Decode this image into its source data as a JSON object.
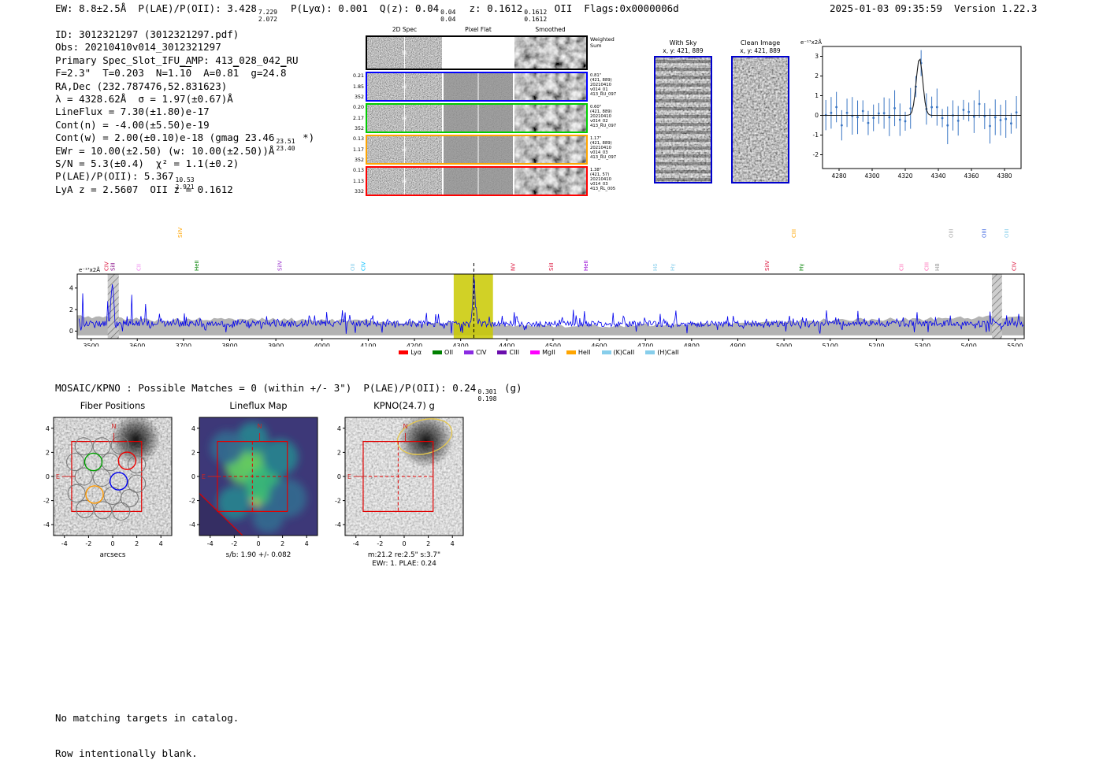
{
  "header": {
    "stats": [
      {
        "t": "EW: 8.8±2.5Å  P(LAE)/P(OII): 3.428"
      },
      {
        "up": "7.229",
        "dn": "2.072"
      },
      {
        "t": "  P(Lyα): 0.001  Q(z): 0.04"
      },
      {
        "up": "0.04",
        "dn": "0.04"
      },
      {
        "t": "  z: 0.1612"
      },
      {
        "up": "0.1612",
        "dn": "0.1612"
      },
      {
        "t": " OII  Flags:0x0000006d"
      }
    ],
    "timestamp_version": "2025-01-03 09:35:59  Version 1.22.3"
  },
  "info_lines": [
    [
      {
        "t": "ID: 3012321297 (3012321297.pdf)"
      }
    ],
    [
      {
        "t": "Obs: 20210410v014_3012321297"
      }
    ],
    [
      {
        "t": "Primary Spec_Slot_IFU_AMP: 413_028_042_RU"
      }
    ],
    [
      {
        "t": "F=2.3\"  T=0.203  N=1."
      },
      {
        "t": "10",
        "bar": true
      },
      {
        "t": "  A=0.8"
      },
      {
        "t": "1",
        "bar": true
      },
      {
        "t": "  g=24."
      },
      {
        "t": "8",
        "bar": true
      }
    ],
    [
      {
        "t": "RA,Dec (232.787476,52.831623)"
      }
    ],
    [
      {
        "t": "λ = 4328.62Å  σ = 1.97(±0.67)Å"
      }
    ],
    [
      {
        "t": "LineFlux = 7.30(±1.80)e-17"
      }
    ],
    [
      {
        "t": "Cont(n) = -4.00(±5.50)e-19"
      }
    ],
    [
      {
        "t": "Cont(w) = 2.00(±0.10)e-18 (gmag 23.46"
      },
      {
        "up": "23.51",
        "dn": "23.40"
      },
      {
        "t": " *)"
      }
    ],
    [
      {
        "t": "EWr = 10.00(±2.50) (w: 10.00(±2.50))Å"
      }
    ],
    [
      {
        "t": "S/N = 5.3(±0.4)  χ² = 1.1(±0.2)"
      }
    ],
    [
      {
        "t": "P(LAE)/P(OII): 5.367"
      },
      {
        "up": "10.53",
        "dn": "2.921"
      }
    ],
    [
      {
        "t": "LyA z = 2.5607  OII z = 0.1612"
      }
    ]
  ],
  "grid2d": {
    "col_headers": [
      "2D Spec",
      "Pixel Flat",
      "Smoothed"
    ],
    "rows": [
      {
        "color": "#000000",
        "left": [],
        "right": [
          "Weighted",
          "Sum"
        ]
      },
      {
        "color": "#0000ff",
        "left": [
          "0.21",
          "1.85",
          "352"
        ],
        "right": [
          "0.81\"",
          "(421, 889)",
          "20210410",
          "v014_01",
          "413_RU_097"
        ]
      },
      {
        "color": "#00cc00",
        "left": [
          "0.20",
          "2.17",
          "352"
        ],
        "right": [
          "0.60\"",
          "(421, 889)",
          "20210410",
          "v014_02",
          "413_RU_097"
        ]
      },
      {
        "color": "#ffa500",
        "left": [
          "0.13",
          "1.17",
          "352"
        ],
        "right": [
          "1.17\"",
          "(421, 889)",
          "20210410",
          "v014_03",
          "413_RU_097"
        ]
      },
      {
        "color": "#ff0000",
        "left": [
          "0.13",
          "1.13",
          "332"
        ],
        "right": [
          "1.38\"",
          "(421, 57)",
          "20210410",
          "v014_03",
          "413_RL_005"
        ]
      }
    ]
  },
  "withsky": {
    "title": "With Sky",
    "subtitle": "x, y: 421, 889"
  },
  "clean": {
    "title": "Clean Image",
    "subtitle": "x, y: 421, 889"
  },
  "mosaic": {
    "heading": [
      {
        "t": "MOSAIC/KPNO : Possible Matches = 0 (within +/- 3\")  P(LAE)/P(OII): 0.24"
      },
      {
        "up": "0.301",
        "dn": "0.198"
      },
      {
        "t": " (g)"
      }
    ]
  },
  "footer_lines": [
    "No matching targets in catalog.",
    "Row intentionally blank."
  ],
  "chart_data": [
    {
      "id": "zoom_spectrum",
      "type": "scatter",
      "ylabel": "e⁻¹⁷x2Å",
      "x_range": [
        4270,
        4390
      ],
      "y_range": [
        -2.7,
        3.5
      ],
      "xticks": [
        4280,
        4300,
        4320,
        4340,
        4360,
        4380
      ],
      "yticks": [
        -2,
        -1,
        0,
        1,
        2,
        3
      ],
      "fit": {
        "mu": 4328.62,
        "sigma": 1.97,
        "amp": 2.9
      },
      "points": {
        "seed": 11,
        "x_start": 4272,
        "x_step": 3.2,
        "n": 37,
        "noise": 0.75,
        "err_min": 0.45,
        "err_rand": 0.6
      },
      "colors": {
        "points": "#3a76c4",
        "fit": "#1a1a1a"
      }
    },
    {
      "id": "full_spectrum",
      "type": "line",
      "ylabel": "e⁻¹⁷x2Å",
      "x_range": [
        3470,
        5520
      ],
      "y_range": [
        -0.7,
        5.3
      ],
      "xticks": [
        3500,
        3600,
        3700,
        3800,
        3900,
        4000,
        4100,
        4200,
        4300,
        4400,
        4500,
        4600,
        4700,
        4800,
        4900,
        5000,
        5100,
        5200,
        5300,
        5400,
        5500
      ],
      "yticks": [
        0,
        2,
        4
      ],
      "line_color": "#0000ee",
      "emission": {
        "mu": 4328.62,
        "amp": 4.6,
        "sigma": 2.4
      },
      "noise": {
        "seed": 23,
        "base": 0.55,
        "step": 2,
        "spike_blue": 3.6,
        "spike_norm": 1.5,
        "blue_cut": 3650,
        "extra_spike": {
          "mu": 3546,
          "amp": 3.8,
          "sigma": 3
        }
      },
      "err_band": {
        "seed": 5,
        "base": 0.8,
        "var": 0.35
      },
      "highlight": {
        "x0": 4285,
        "x1": 4370,
        "color": "#c9c900"
      },
      "hatch_regions": [
        [
          3536,
          3560
        ],
        [
          5450,
          5472
        ]
      ],
      "marker_line": 4328.62,
      "line_labels": [
        {
          "t": "CIV",
          "wl": 3537,
          "c": "#dc143c",
          "tier": 0
        },
        {
          "t": "SiII",
          "wl": 3551,
          "c": "#800080",
          "tier": 0
        },
        {
          "t": "CII",
          "wl": 3607,
          "c": "#ee82ee",
          "tier": 0
        },
        {
          "t": "SiIV",
          "wl": 3697,
          "c": "#ffa500",
          "tier": 1
        },
        {
          "t": "HeII",
          "wl": 3733,
          "c": "#008000",
          "tier": 0
        },
        {
          "t": "SiIV",
          "wl": 3913,
          "c": "#9932cc",
          "tier": 0
        },
        {
          "t": "OII",
          "wl": 4070,
          "c": "#87ceeb",
          "tier": 0
        },
        {
          "t": "CIV",
          "wl": 4093,
          "c": "#00bfff",
          "tier": 0
        },
        {
          "t": "NV",
          "wl": 4417,
          "c": "#dc143c",
          "tier": 0
        },
        {
          "t": "SiII",
          "wl": 4500,
          "c": "#dc143c",
          "tier": 0
        },
        {
          "t": "HeII",
          "wl": 4575,
          "c": "#9400d3",
          "tier": 0
        },
        {
          "t": "Hδ",
          "wl": 4725,
          "c": "#87ceeb",
          "tier": 0
        },
        {
          "t": "Hγ",
          "wl": 4763,
          "c": "#87ceeb",
          "tier": 0
        },
        {
          "t": "SiIV",
          "wl": 4967,
          "c": "#dc143c",
          "tier": 0
        },
        {
          "t": "CIII",
          "wl": 5025,
          "c": "#ffa500",
          "tier": 1
        },
        {
          "t": "Hγ",
          "wl": 5042,
          "c": "#008000",
          "tier": 0
        },
        {
          "t": "CII",
          "wl": 5258,
          "c": "#ff69b4",
          "tier": 0
        },
        {
          "t": "CIII",
          "wl": 5313,
          "c": "#ff69b4",
          "tier": 0
        },
        {
          "t": "H8",
          "wl": 5336,
          "c": "#999999",
          "tier": 0
        },
        {
          "t": "OIII",
          "wl": 5366,
          "c": "#aaaaaa",
          "tier": 1
        },
        {
          "t": "OIII",
          "wl": 5437,
          "c": "#4169e1",
          "tier": 1
        },
        {
          "t": "OIII",
          "wl": 5486,
          "c": "#87ceeb",
          "tier": 1
        },
        {
          "t": "CIV",
          "wl": 5502,
          "c": "#dc143c",
          "tier": 0
        }
      ],
      "legend": [
        {
          "label": "Lyα",
          "color": "#ff0000"
        },
        {
          "label": "OII",
          "color": "#008000"
        },
        {
          "label": "CIV",
          "color": "#8a2be2"
        },
        {
          "label": "CIII",
          "color": "#6a0dad"
        },
        {
          "label": "MgII",
          "color": "#ff00ff"
        },
        {
          "label": "HeII",
          "color": "#ffa500"
        },
        {
          "label": "(K)CaII",
          "color": "#87ceeb"
        },
        {
          "label": "(H)CaII",
          "color": "#87ceeb"
        }
      ]
    },
    {
      "id": "fiber_positions",
      "type": "image",
      "title": "Fiber Positions",
      "xlabel": "arcsecs",
      "ticks": [
        -4,
        -2,
        0,
        2,
        4
      ],
      "compass": {
        "n": "N",
        "e": "E",
        "color": "#cc2222"
      },
      "square": [
        -3.4,
        -2.9,
        2.4,
        2.9
      ],
      "blob": {
        "x": 1.9,
        "y": 3.1,
        "r": 2.1
      },
      "fiber_radius": 0.72,
      "fibers_gray": [
        [
          -2.4,
          2.5
        ],
        [
          -0.9,
          2.5
        ],
        [
          0.6,
          2.6
        ],
        [
          -3.1,
          1.2
        ],
        [
          -0.2,
          1.2
        ],
        [
          2.0,
          1.0
        ],
        [
          -2.4,
          0.0
        ],
        [
          -0.9,
          -0.1
        ],
        [
          2.0,
          -0.6
        ],
        [
          -3.0,
          -1.4
        ],
        [
          0.0,
          -1.6
        ],
        [
          1.4,
          -1.8
        ],
        [
          -2.3,
          -2.7
        ],
        [
          -0.8,
          -2.8
        ],
        [
          0.7,
          -2.9
        ]
      ],
      "fibers_colored": [
        {
          "x": -1.6,
          "y": 1.2,
          "c": "#00a000"
        },
        {
          "x": 1.2,
          "y": 1.3,
          "c": "#ee0000"
        },
        {
          "x": 0.5,
          "y": -0.4,
          "c": "#0000ee"
        },
        {
          "x": -1.5,
          "y": -1.5,
          "c": "#ff9900"
        }
      ]
    },
    {
      "id": "lineflux_map",
      "type": "heatmap",
      "title": "Lineflux Map",
      "xlabel": "s/b: 1.90 +/- 0.082",
      "ticks": [
        -4,
        -2,
        0,
        2,
        4
      ],
      "compass": {
        "n": "N",
        "e": "E",
        "color": "#cc2222"
      },
      "square": [
        -3.4,
        -2.9,
        2.4,
        2.9
      ],
      "crosshair": {
        "x": -0.5,
        "y": 0
      },
      "bg": "#3d3878",
      "cut_fill": "#352e63",
      "cut_line": [
        [
          -4.9,
          -1.3
        ],
        [
          -1.2,
          -4.9
        ]
      ],
      "blobs": [
        {
          "x": -1.5,
          "y": 1.9,
          "r": 1.0,
          "c": "#fde725"
        },
        {
          "x": -0.3,
          "y": 0.4,
          "r": 0.9,
          "c": "#fde725"
        },
        {
          "x": 0.2,
          "y": -1.8,
          "r": 0.85,
          "c": "#d8e219"
        },
        {
          "x": -1.1,
          "y": 1.0,
          "r": 1.7,
          "c": "#5ec962"
        },
        {
          "x": 0.4,
          "y": -0.7,
          "r": 1.5,
          "c": "#35b779"
        },
        {
          "x": -0.5,
          "y": 3.2,
          "r": 1.3,
          "c": "#26828e"
        },
        {
          "x": -2.6,
          "y": 2.4,
          "r": 1.4,
          "c": "#31688e"
        },
        {
          "x": 1.8,
          "y": 1.6,
          "r": 1.5,
          "c": "#26828e"
        },
        {
          "x": -2.0,
          "y": -2.2,
          "r": 1.4,
          "c": "#26828e"
        },
        {
          "x": 2.4,
          "y": -1.8,
          "r": 1.6,
          "c": "#31688e"
        },
        {
          "x": 0.8,
          "y": -3.4,
          "r": 1.3,
          "c": "#31688e"
        }
      ]
    },
    {
      "id": "kpno_cutout",
      "type": "image",
      "title": "KPNO(24.7) g",
      "xlabel": "m:21.2  re:2.5\"  s:3.7\"",
      "xlabel2": "EWr: 1. PLAE: 0.24",
      "ticks": [
        -4,
        -2,
        0,
        2,
        4
      ],
      "compass": {
        "n": "N",
        "e": "E",
        "color": "#cc2222"
      },
      "square": [
        -3.4,
        -2.9,
        2.4,
        2.9
      ],
      "crosshair": {
        "x": -0.5,
        "y": 0
      },
      "blob": {
        "x": 1.8,
        "y": 3.0,
        "r": 2.3
      },
      "ellipse": {
        "x": 1.7,
        "y": 3.3,
        "rx": 2.3,
        "ry": 1.4,
        "rot": -15,
        "color": "#e6c84d"
      }
    }
  ]
}
